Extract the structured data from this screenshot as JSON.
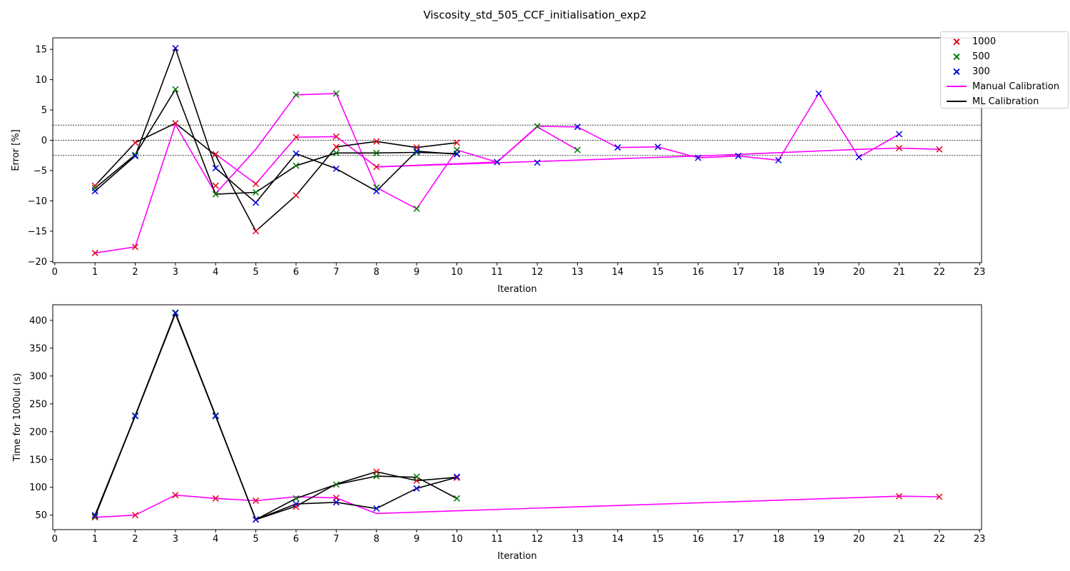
{
  "figure_title": "Viscosity_std_505_CCF_initialisation_exp2",
  "legend": {
    "items": [
      {
        "label": "1000",
        "kind": "marker",
        "color": "#e8001c"
      },
      {
        "label": "500",
        "kind": "marker",
        "color": "#007a00"
      },
      {
        "label": "300",
        "kind": "marker",
        "color": "#0000e0"
      },
      {
        "label": "Manual Calibration",
        "kind": "line",
        "color": "#ff00ff"
      },
      {
        "label": "ML Calibration",
        "kind": "line",
        "color": "#000000"
      }
    ],
    "placement": "upper-right"
  },
  "chart_data": [
    {
      "type": "line",
      "title": "",
      "xlabel": "Iteration",
      "ylabel": "Error [%]",
      "xlim": [
        -0.05,
        23.05
      ],
      "ylim": [
        -20.2,
        16.9
      ],
      "xticks": [
        0,
        1,
        2,
        3,
        4,
        5,
        6,
        7,
        8,
        9,
        10,
        11,
        12,
        13,
        14,
        15,
        16,
        17,
        18,
        19,
        20,
        21,
        22,
        23
      ],
      "yticks": [
        -20,
        -15,
        -10,
        -5,
        0,
        5,
        10,
        15
      ],
      "reference_lines": [
        2.5,
        0,
        -2.5
      ],
      "lines": [
        {
          "name": "Manual Calibration",
          "color": "#ff00ff",
          "points": [
            [
              1,
              -18.6
            ],
            [
              2,
              -17.6
            ],
            [
              3,
              2.6
            ],
            [
              4,
              -8.8
            ],
            [
              5,
              -1.5
            ],
            [
              6,
              7.5
            ],
            [
              7,
              7.7
            ],
            [
              8,
              -7.8
            ],
            [
              9,
              -11.3
            ],
            [
              10,
              -1.6
            ],
            [
              11,
              -3.6
            ],
            [
              12,
              2.2
            ],
            [
              13,
              -1.6
            ]
          ]
        },
        {
          "name": "Manual Calibration",
          "color": "#ff00ff",
          "points": [
            [
              4,
              -2.3
            ],
            [
              5,
              -7.2
            ],
            [
              6,
              0.5
            ],
            [
              7,
              0.6
            ],
            [
              8,
              -4.4
            ],
            [
              11,
              -3.6
            ],
            [
              12,
              2.3
            ],
            [
              13,
              2.2
            ],
            [
              14,
              -1.2
            ],
            [
              15,
              -1.1
            ],
            [
              16,
              -2.9
            ],
            [
              17,
              -2.6
            ],
            [
              18,
              -3.3
            ],
            [
              19,
              7.7
            ],
            [
              20,
              -2.8
            ]
          ]
        },
        {
          "name": "Manual Calibration",
          "color": "#ff00ff",
          "points": [
            [
              8,
              -4.4
            ],
            [
              12,
              -3.5
            ],
            [
              16,
              -2.6
            ],
            [
              20,
              -1.5
            ],
            [
              21,
              -1.3
            ],
            [
              22,
              -1.5
            ]
          ]
        },
        {
          "name": "Manual Calibration",
          "color": "#ff00ff",
          "points": [
            [
              20,
              -2.8
            ],
            [
              21,
              1.0
            ]
          ]
        },
        {
          "name": "ML Calibration",
          "color": "#000000",
          "points": [
            [
              1,
              -7.5
            ],
            [
              2,
              -0.4
            ],
            [
              3,
              2.8
            ],
            [
              4,
              -2.5
            ],
            [
              5,
              -15.0
            ],
            [
              6,
              -9.1
            ],
            [
              7,
              -1.1
            ],
            [
              8,
              -0.2
            ],
            [
              9,
              -1.2
            ],
            [
              10,
              -0.4
            ]
          ]
        },
        {
          "name": "ML Calibration",
          "color": "#000000",
          "points": [
            [
              1,
              -7.9
            ],
            [
              2,
              -2.4
            ],
            [
              3,
              8.4
            ],
            [
              4,
              -8.9
            ],
            [
              5,
              -8.6
            ],
            [
              6,
              -4.2
            ],
            [
              7,
              -2.1
            ],
            [
              8,
              -2.1
            ],
            [
              9,
              -2.0
            ],
            [
              10,
              -2.2
            ]
          ]
        },
        {
          "name": "ML Calibration",
          "color": "#000000",
          "points": [
            [
              1,
              -8.4
            ],
            [
              2,
              -2.6
            ],
            [
              3,
              15.2
            ],
            [
              4,
              -4.6
            ],
            [
              5,
              -10.3
            ],
            [
              6,
              -2.2
            ],
            [
              7,
              -4.7
            ],
            [
              8,
              -8.4
            ],
            [
              9,
              -1.8
            ],
            [
              10,
              -2.3
            ]
          ]
        }
      ],
      "series": [
        {
          "name": "1000",
          "color": "#e8001c",
          "points": [
            [
              1,
              -18.6
            ],
            [
              2,
              -17.6
            ],
            [
              3,
              2.8
            ],
            [
              4,
              -7.5
            ],
            [
              5,
              -15.0
            ],
            [
              6,
              -9.1
            ],
            [
              7,
              -1.1
            ],
            [
              8,
              -0.2
            ],
            [
              9,
              -1.2
            ],
            [
              10,
              -0.4
            ],
            [
              1,
              -7.5
            ],
            [
              2,
              -0.4
            ],
            [
              4,
              -2.3
            ],
            [
              5,
              -7.2
            ],
            [
              6,
              0.5
            ],
            [
              7,
              0.6
            ],
            [
              8,
              -4.4
            ],
            [
              21,
              -1.3
            ],
            [
              22,
              -1.5
            ]
          ]
        },
        {
          "name": "500",
          "color": "#007a00",
          "points": [
            [
              1,
              -7.9
            ],
            [
              2,
              -2.4
            ],
            [
              3,
              8.4
            ],
            [
              4,
              -8.9
            ],
            [
              5,
              -8.6
            ],
            [
              6,
              -4.2
            ],
            [
              7,
              -2.1
            ],
            [
              8,
              -2.1
            ],
            [
              9,
              -2.0
            ],
            [
              10,
              -2.2
            ],
            [
              6,
              7.5
            ],
            [
              7,
              7.7
            ],
            [
              8,
              -7.8
            ],
            [
              9,
              -11.3
            ],
            [
              10,
              -1.6
            ],
            [
              12,
              2.3
            ],
            [
              13,
              -1.6
            ]
          ]
        },
        {
          "name": "300",
          "color": "#0000e0",
          "points": [
            [
              1,
              -8.4
            ],
            [
              2,
              -2.6
            ],
            [
              3,
              15.2
            ],
            [
              4,
              -4.6
            ],
            [
              5,
              -10.3
            ],
            [
              6,
              -2.2
            ],
            [
              7,
              -4.7
            ],
            [
              8,
              -8.4
            ],
            [
              9,
              -1.8
            ],
            [
              10,
              -2.3
            ],
            [
              11,
              -3.6
            ],
            [
              12,
              -3.7
            ],
            [
              13,
              2.2
            ],
            [
              14,
              -1.2
            ],
            [
              15,
              -1.1
            ],
            [
              16,
              -2.9
            ],
            [
              17,
              -2.6
            ],
            [
              18,
              -3.3
            ],
            [
              19,
              7.7
            ],
            [
              20,
              -2.8
            ],
            [
              21,
              1.0
            ]
          ]
        }
      ]
    },
    {
      "type": "line",
      "title": "",
      "xlabel": "Iteration",
      "ylabel": "Time for 1000ul (s)",
      "xlim": [
        -0.05,
        23.05
      ],
      "ylim": [
        24,
        428
      ],
      "xticks": [
        0,
        1,
        2,
        3,
        4,
        5,
        6,
        7,
        8,
        9,
        10,
        11,
        12,
        13,
        14,
        15,
        16,
        17,
        18,
        19,
        20,
        21,
        22,
        23
      ],
      "yticks": [
        50,
        100,
        150,
        200,
        250,
        300,
        350,
        400
      ],
      "reference_lines": [],
      "lines": [
        {
          "name": "Manual Calibration",
          "color": "#ff00ff",
          "points": [
            [
              1,
              46
            ],
            [
              2,
              50
            ],
            [
              3,
              86
            ],
            [
              4,
              80
            ],
            [
              5,
              76
            ],
            [
              6,
              83
            ],
            [
              7,
              81
            ],
            [
              8,
              53
            ],
            [
              21,
              84
            ],
            [
              22,
              83
            ]
          ]
        },
        {
          "name": "ML Calibration",
          "color": "#000000",
          "points": [
            [
              1,
              50
            ],
            [
              2,
              228
            ],
            [
              3,
              413
            ],
            [
              4,
              228
            ],
            [
              5,
              42
            ],
            [
              6,
              70
            ],
            [
              7,
              73
            ],
            [
              8,
              62
            ],
            [
              9,
              98
            ],
            [
              10,
              118
            ]
          ]
        },
        {
          "name": "ML Calibration",
          "color": "#000000",
          "points": [
            [
              1,
              48
            ],
            [
              2,
              229
            ],
            [
              3,
              414
            ],
            [
              4,
              229
            ],
            [
              5,
              42
            ],
            [
              6,
              80
            ],
            [
              7,
              105
            ],
            [
              8,
              120
            ],
            [
              9,
              118
            ],
            [
              10,
              80
            ]
          ]
        },
        {
          "name": "ML Calibration",
          "color": "#000000",
          "points": [
            [
              1,
              47
            ],
            [
              2,
              228
            ],
            [
              3,
              412
            ],
            [
              4,
              228
            ],
            [
              5,
              42
            ],
            [
              6,
              66
            ],
            [
              7,
              106
            ],
            [
              8,
              128
            ],
            [
              9,
              112
            ],
            [
              10,
              118
            ]
          ]
        }
      ],
      "series": [
        {
          "name": "1000",
          "color": "#e8001c",
          "points": [
            [
              1,
              46
            ],
            [
              2,
              50
            ],
            [
              3,
              86
            ],
            [
              4,
              80
            ],
            [
              5,
              76
            ],
            [
              6,
              65
            ],
            [
              7,
              81
            ],
            [
              8,
              128
            ],
            [
              9,
              112
            ],
            [
              10,
              117
            ],
            [
              21,
              84
            ],
            [
              22,
              83
            ]
          ]
        },
        {
          "name": "500",
          "color": "#007a00",
          "points": [
            [
              1,
              48
            ],
            [
              2,
              229
            ],
            [
              3,
              414
            ],
            [
              4,
              229
            ],
            [
              5,
              42
            ],
            [
              6,
              80
            ],
            [
              7,
              105
            ],
            [
              8,
              120
            ],
            [
              9,
              119
            ],
            [
              10,
              80
            ]
          ]
        },
        {
          "name": "300",
          "color": "#0000e0",
          "points": [
            [
              1,
              50
            ],
            [
              2,
              228
            ],
            [
              3,
              413
            ],
            [
              4,
              228
            ],
            [
              5,
              42
            ],
            [
              6,
              70
            ],
            [
              7,
              73
            ],
            [
              8,
              62
            ],
            [
              9,
              98
            ],
            [
              10,
              119
            ]
          ]
        }
      ]
    }
  ]
}
